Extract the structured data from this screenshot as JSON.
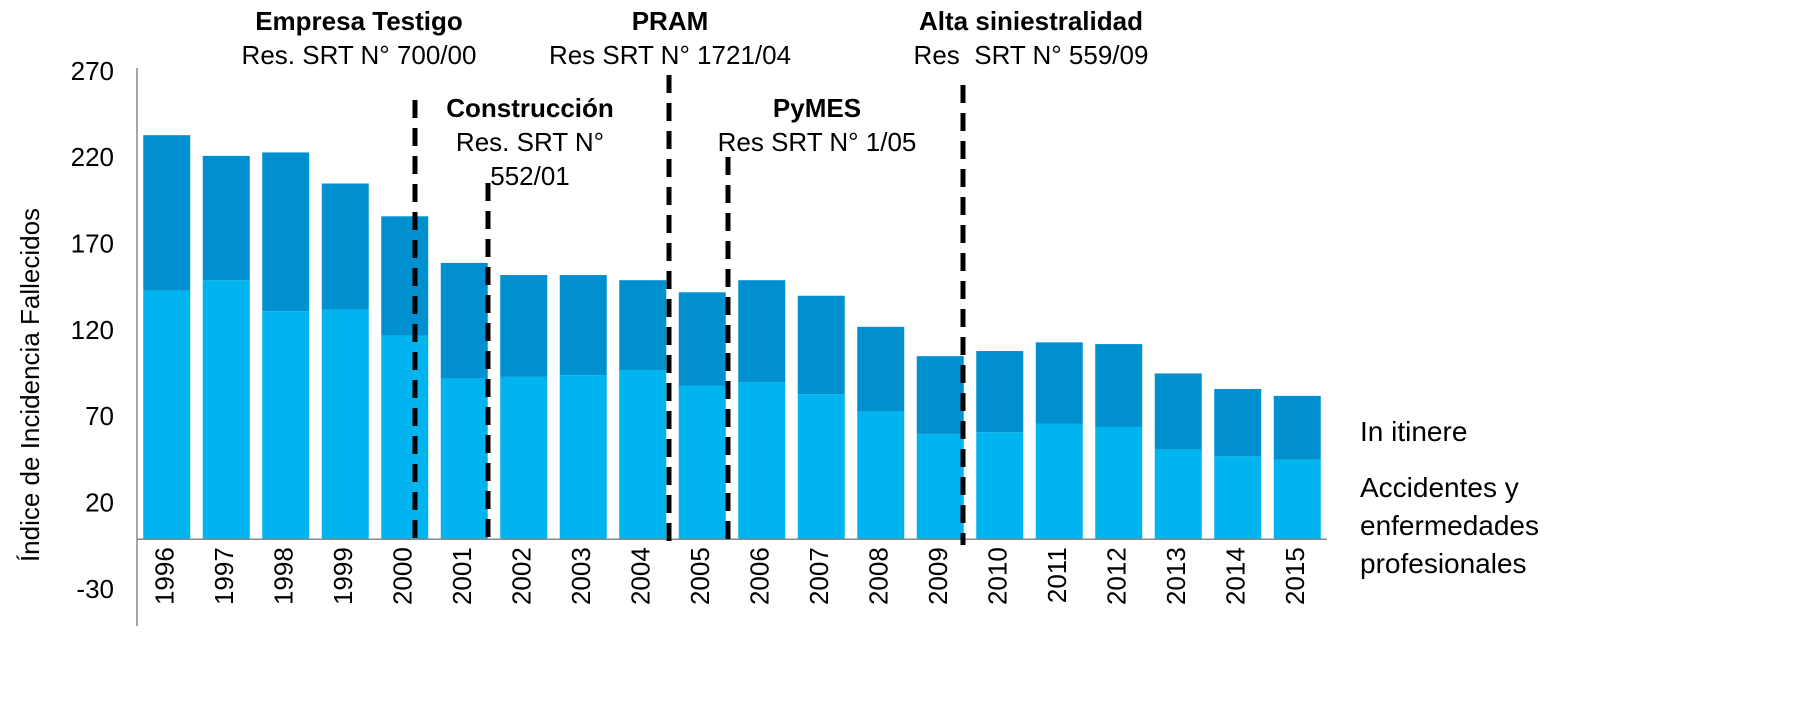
{
  "chart_data": {
    "type": "stacked_bar",
    "ylabel": "Índice de Incidencia Fallecidos",
    "categories": [
      "1996",
      "1997",
      "1998",
      "1999",
      "2000",
      "2001",
      "2002",
      "2003",
      "2004",
      "2005",
      "2006",
      "2007",
      "2008",
      "2009",
      "2010",
      "2011",
      "2012",
      "2013",
      "2014",
      "2015"
    ],
    "series": [
      {
        "name": "Accidentes y enfermedades profesionales",
        "color": "#00b4f0",
        "values": [
          144,
          150,
          132,
          133,
          118,
          93,
          94,
          95,
          98,
          89,
          91,
          84,
          74,
          61,
          62,
          67,
          65,
          52,
          48,
          46
        ]
      },
      {
        "name": "In itinere",
        "color": "#0090d0",
        "values": [
          90,
          72,
          92,
          73,
          69,
          67,
          59,
          58,
          52,
          54,
          59,
          57,
          49,
          45,
          47,
          47,
          48,
          44,
          39,
          37
        ]
      }
    ],
    "ylim": [
      -30,
      270
    ],
    "yticks": [
      -30,
      20,
      70,
      120,
      170,
      220,
      270
    ],
    "annotations": [
      {
        "title": "Empresa Testigo",
        "text": "Res. SRT N° 700/00"
      },
      {
        "title": "Construcción",
        "text": "Res. SRT N° 552/01"
      },
      {
        "title": "PRAM",
        "text": "Res SRT N° 1721/04"
      },
      {
        "title": "PyMES",
        "text": "Res SRT N° 1/05"
      },
      {
        "title": "Alta siniestralidad",
        "text": "Res  SRT N° 559/09"
      }
    ]
  }
}
